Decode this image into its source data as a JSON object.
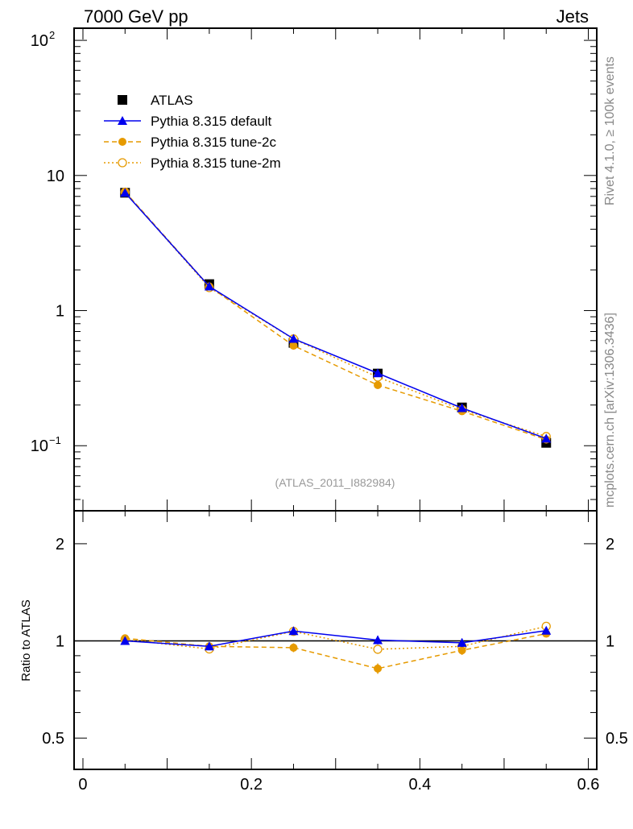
{
  "header": {
    "left": "7000 GeV pp",
    "right": "Jets"
  },
  "side_text": {
    "top": "Rivet 4.1.0, ≥ 100k events",
    "bottom": "mcplots.cern.ch [arXiv:1306.3436]"
  },
  "analysis_label": "(ATLAS_2011_I882984)",
  "colors": {
    "data": "#000000",
    "default": "#0000ee",
    "tune2c": "#e69a00",
    "tune2m": "#e69a00"
  },
  "chart_data": [
    {
      "type": "line",
      "panel": "main",
      "yscale": "log",
      "xlim": [
        -0.0105,
        0.61
      ],
      "ylim": [
        0.033,
        123
      ],
      "ytick_labels": [
        {
          "v": 0.1,
          "base": "10",
          "exp": "−1"
        },
        {
          "v": 1,
          "label": "1"
        },
        {
          "v": 10,
          "label": "10"
        },
        {
          "v": 100,
          "base": "10",
          "exp": "2"
        }
      ],
      "x": [
        0.05,
        0.15,
        0.25,
        0.35,
        0.45,
        0.55
      ],
      "legend_position": "top-left",
      "series": [
        {
          "name": "ATLAS",
          "style": "data",
          "values": [
            7.45,
            1.57,
            0.577,
            0.342,
            0.192,
            0.105
          ]
        },
        {
          "name": "Pythia 8.315 default",
          "style": "default",
          "values": [
            7.45,
            1.51,
            0.619,
            0.344,
            0.19,
            0.113
          ]
        },
        {
          "name": "Pythia 8.315 tune-2c",
          "style": "tune2c",
          "values": [
            7.59,
            1.51,
            0.55,
            0.281,
            0.18,
            0.111
          ]
        },
        {
          "name": "Pythia 8.315 tune-2m",
          "style": "tune2m",
          "values": [
            7.52,
            1.48,
            0.617,
            0.322,
            0.185,
            0.117
          ]
        }
      ]
    },
    {
      "type": "line",
      "panel": "ratio",
      "yscale": "log",
      "ylabel": "Ratio to ATLAS",
      "xlim": [
        -0.0105,
        0.61
      ],
      "ylim": [
        0.4,
        2.53
      ],
      "ytick_labels": [
        "0.5",
        "1",
        "2"
      ],
      "xtick_labels": [
        "0",
        "0.2",
        "0.4",
        "0.6"
      ],
      "x": [
        0.05,
        0.15,
        0.25,
        0.35,
        0.45,
        0.55
      ],
      "series": [
        {
          "name": "Pythia 8.315 default",
          "style": "default",
          "values": [
            1.0,
            0.962,
            1.073,
            1.006,
            0.987,
            1.076
          ],
          "errors": [
            0.01,
            0.015,
            0.03,
            0.03,
            0.03,
            0.02
          ]
        },
        {
          "name": "Pythia 8.315 tune-2c",
          "style": "tune2c",
          "values": [
            1.019,
            0.962,
            0.953,
            0.821,
            0.935,
            1.053
          ],
          "errors": [
            0.01,
            0.015,
            0.03,
            0.03,
            0.03,
            0.02
          ]
        },
        {
          "name": "Pythia 8.315 tune-2m",
          "style": "tune2m",
          "values": [
            1.01,
            0.944,
            1.07,
            0.942,
            0.962,
            1.11
          ],
          "errors": [
            0.01,
            0.015,
            0.03,
            0.03,
            0.03,
            0.02
          ]
        }
      ]
    }
  ]
}
